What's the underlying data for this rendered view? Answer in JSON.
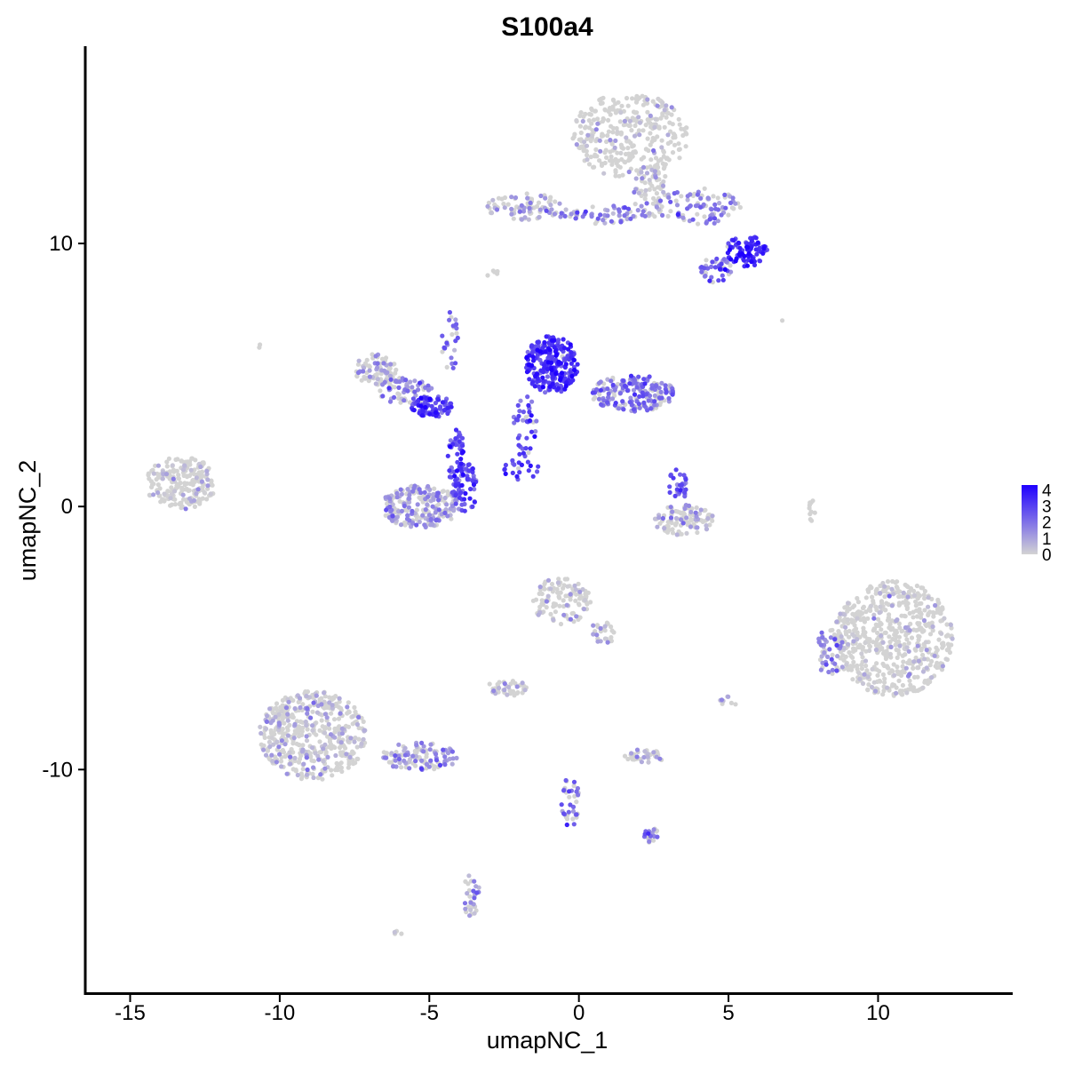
{
  "chart_data": {
    "type": "scatter",
    "title": "S100a4",
    "xlabel": "umapNC_1",
    "ylabel": "umapNC_2",
    "xlim": [
      -16.5,
      14.5
    ],
    "ylim": [
      -18.5,
      17.5
    ],
    "x_ticks": [
      -15,
      -10,
      -5,
      0,
      5,
      10
    ],
    "x_tick_labels": [
      "-15",
      "-10",
      "-5",
      "0",
      "5",
      "10"
    ],
    "y_ticks": [
      -10,
      0,
      10
    ],
    "y_tick_labels": [
      "-10",
      "0",
      "10"
    ],
    "grid": false,
    "color_scale": {
      "low": "#d3d3d3",
      "high": "#1f00ff",
      "min": 0,
      "max": 4.3,
      "legend_position": "right",
      "legend_ticks": [
        0,
        1,
        2,
        3,
        4
      ],
      "legend_tick_labels": [
        "0",
        "1",
        "2",
        "3",
        "4"
      ]
    },
    "clusters": [
      {
        "id": "top-right-blob",
        "cx": 1.7,
        "cy": 14.1,
        "rx": 2.0,
        "ry": 1.6,
        "n": 320,
        "expr": 0.1
      },
      {
        "id": "top-neck",
        "cx": 2.4,
        "cy": 12.0,
        "rx": 0.6,
        "ry": 1.0,
        "n": 70,
        "expr": 0.6
      },
      {
        "id": "top-right-strand",
        "cx": 4.0,
        "cy": 11.4,
        "rx": 1.4,
        "ry": 0.7,
        "n": 90,
        "expr": 1.6
      },
      {
        "id": "top-right-bright",
        "cx": 5.6,
        "cy": 9.7,
        "rx": 0.7,
        "ry": 0.6,
        "n": 80,
        "expr": 3.5
      },
      {
        "id": "top-right-lobe",
        "cx": 4.6,
        "cy": 9.0,
        "rx": 0.6,
        "ry": 0.5,
        "n": 45,
        "expr": 2.2
      },
      {
        "id": "top-band-left",
        "cx": -1.8,
        "cy": 11.4,
        "rx": 1.3,
        "ry": 0.5,
        "n": 90,
        "expr": 0.9
      },
      {
        "id": "top-band-mid",
        "cx": 0.8,
        "cy": 11.1,
        "rx": 1.5,
        "ry": 0.35,
        "n": 60,
        "expr": 1.8
      },
      {
        "id": "center-bright",
        "cx": -0.9,
        "cy": 5.4,
        "rx": 0.9,
        "ry": 1.1,
        "n": 260,
        "expr": 3.2
      },
      {
        "id": "center-arm",
        "cx": 1.8,
        "cy": 4.3,
        "rx": 1.4,
        "ry": 0.7,
        "n": 190,
        "expr": 1.9
      },
      {
        "id": "center-stem",
        "cx": -1.8,
        "cy": 3.0,
        "rx": 0.4,
        "ry": 1.2,
        "n": 40,
        "expr": 2.5
      },
      {
        "id": "left-arc-top",
        "cx": -6.8,
        "cy": 5.2,
        "rx": 0.7,
        "ry": 0.6,
        "n": 90,
        "expr": 0.8
      },
      {
        "id": "left-diag",
        "cx": -5.8,
        "cy": 4.4,
        "rx": 0.9,
        "ry": 0.5,
        "n": 70,
        "expr": 1.6
      },
      {
        "id": "left-node",
        "cx": -4.9,
        "cy": 3.8,
        "rx": 0.7,
        "ry": 0.4,
        "n": 90,
        "expr": 2.9
      },
      {
        "id": "left-vertical",
        "cx": -4.1,
        "cy": 1.7,
        "rx": 0.3,
        "ry": 1.3,
        "n": 50,
        "expr": 2.8
      },
      {
        "id": "left-streak",
        "cx": -4.3,
        "cy": 6.2,
        "rx": 0.3,
        "ry": 1.2,
        "n": 25,
        "expr": 2.0
      },
      {
        "id": "horseshoe-bottom",
        "cx": -5.3,
        "cy": 0.0,
        "rx": 1.3,
        "ry": 0.8,
        "n": 230,
        "expr": 1.2
      },
      {
        "id": "horseshoe-right",
        "cx": -3.8,
        "cy": 0.7,
        "rx": 0.4,
        "ry": 1.0,
        "n": 60,
        "expr": 2.6
      },
      {
        "id": "diag-streak",
        "cx": -1.9,
        "cy": 1.4,
        "rx": 0.7,
        "ry": 0.4,
        "n": 20,
        "expr": 3.0
      },
      {
        "id": "far-left-blob",
        "cx": -13.3,
        "cy": 0.9,
        "rx": 1.2,
        "ry": 1.0,
        "n": 220,
        "expr": 0.15
      },
      {
        "id": "right-small-cluster",
        "cx": 3.5,
        "cy": -0.5,
        "rx": 1.0,
        "ry": 0.6,
        "n": 110,
        "expr": 0.6
      },
      {
        "id": "right-small-streak",
        "cx": 3.3,
        "cy": 0.8,
        "rx": 0.3,
        "ry": 0.7,
        "n": 30,
        "expr": 2.6
      },
      {
        "id": "far-right-blob",
        "cx": 10.5,
        "cy": -5.0,
        "rx": 2.0,
        "ry": 2.2,
        "n": 620,
        "expr": 0.1
      },
      {
        "id": "far-right-edge",
        "cx": 8.4,
        "cy": -5.5,
        "rx": 0.5,
        "ry": 0.9,
        "n": 50,
        "expr": 1.6
      },
      {
        "id": "mid-blob",
        "cx": -0.6,
        "cy": -3.6,
        "rx": 1.0,
        "ry": 0.9,
        "n": 110,
        "expr": 0.3
      },
      {
        "id": "mid-tail",
        "cx": 0.9,
        "cy": -4.8,
        "rx": 0.6,
        "ry": 0.4,
        "n": 25,
        "expr": 0.8
      },
      {
        "id": "bottom-left-blob",
        "cx": -8.9,
        "cy": -8.7,
        "rx": 1.8,
        "ry": 1.7,
        "n": 480,
        "expr": 0.55
      },
      {
        "id": "bottom-left-tail",
        "cx": -5.3,
        "cy": -9.5,
        "rx": 1.3,
        "ry": 0.55,
        "n": 110,
        "expr": 1.3
      },
      {
        "id": "small-left-cluster",
        "cx": -2.4,
        "cy": -6.9,
        "rx": 0.7,
        "ry": 0.3,
        "n": 40,
        "expr": 0.6
      },
      {
        "id": "small-right-cluster",
        "cx": 2.2,
        "cy": -9.5,
        "rx": 0.7,
        "ry": 0.3,
        "n": 40,
        "expr": 0.7
      },
      {
        "id": "bottom-streak",
        "cx": -0.3,
        "cy": -11.2,
        "rx": 0.3,
        "ry": 1.0,
        "n": 35,
        "expr": 2.2
      },
      {
        "id": "bottom-right-dot",
        "cx": 2.4,
        "cy": -12.5,
        "rx": 0.3,
        "ry": 0.3,
        "n": 20,
        "expr": 1.8
      },
      {
        "id": "bottom-mini",
        "cx": -3.6,
        "cy": -14.8,
        "rx": 0.3,
        "ry": 0.8,
        "n": 30,
        "expr": 1.4
      },
      {
        "id": "lone-far-left",
        "cx": -10.7,
        "cy": 6.1,
        "rx": 0.1,
        "ry": 0.1,
        "n": 2,
        "expr": 0.0
      },
      {
        "id": "lone-top-center",
        "cx": -2.9,
        "cy": 8.9,
        "rx": 0.2,
        "ry": 0.2,
        "n": 5,
        "expr": 0.0
      },
      {
        "id": "lone-right-streak",
        "cx": 7.8,
        "cy": -0.2,
        "rx": 0.1,
        "ry": 0.6,
        "n": 10,
        "expr": 0.0
      },
      {
        "id": "lone-far-right",
        "cx": 6.8,
        "cy": 7.1,
        "rx": 0.05,
        "ry": 0.05,
        "n": 1,
        "expr": 2.0
      },
      {
        "id": "lone-right-small",
        "cx": 5.0,
        "cy": -7.4,
        "rx": 0.3,
        "ry": 0.2,
        "n": 8,
        "expr": 0.2
      },
      {
        "id": "lone-bottom-far",
        "cx": -6.0,
        "cy": -16.2,
        "rx": 0.2,
        "ry": 0.1,
        "n": 4,
        "expr": 0.0
      }
    ]
  }
}
